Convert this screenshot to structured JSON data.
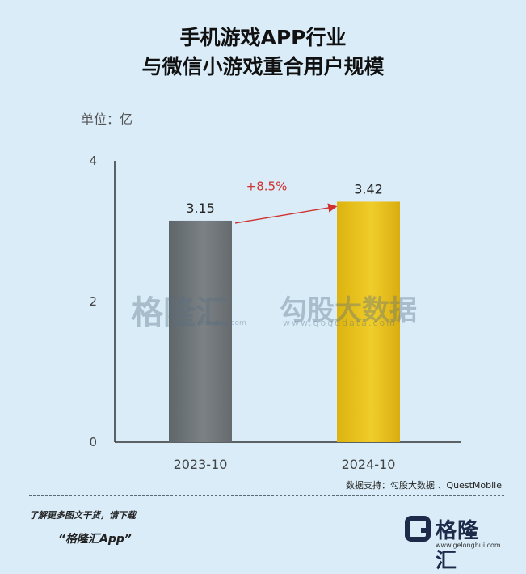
{
  "title": {
    "line1": "手机游戏APP行业",
    "line2": "与微信小游戏重合用户规模"
  },
  "unit": "单位：亿",
  "chart_data": {
    "type": "bar",
    "categories": [
      "2023-10",
      "2024-10"
    ],
    "values": [
      3.15,
      3.42
    ],
    "bar_colors": [
      "#6e7478",
      "#e8c21a"
    ],
    "value_labels": [
      "3.15",
      "3.42"
    ],
    "yticks": [
      "0",
      "2",
      "4"
    ],
    "ylim": [
      0,
      4
    ],
    "annotation": "+8.5%",
    "annotation_color": "#d0312d",
    "grid": false
  },
  "watermark": {
    "brand": "格隆汇",
    "url": "www.gelonghui.com",
    "data_brand": "勾股大数据",
    "data_url": "www.gogudata.com"
  },
  "source": "数据支持：勾股大数据 、QuestMobile",
  "promo": {
    "line1": "了解更多图文干货，请下载",
    "line2": "“格隆汇App”"
  },
  "logo": {
    "name": "格隆汇",
    "url": "www.gelonghui.com"
  }
}
